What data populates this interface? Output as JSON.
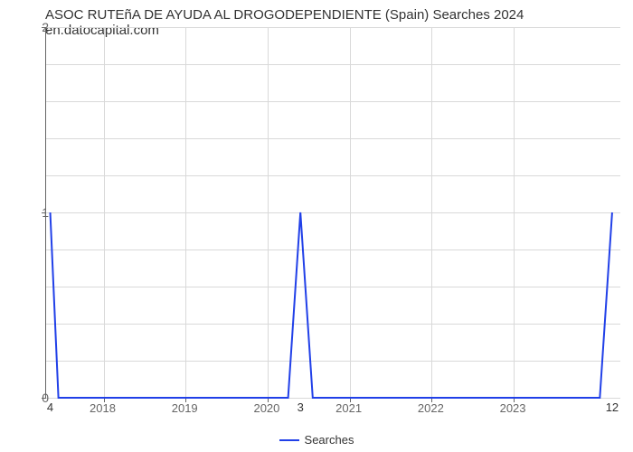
{
  "chart": {
    "type": "line",
    "title": "ASOC RUTEñA DE AYUDA AL DROGODEPENDIENTE (Spain) Searches 2024 en.datocapital.com",
    "title_fontsize": 15,
    "title_color": "#333333",
    "background_color": "#ffffff",
    "grid_color": "#d9d9d9",
    "axis_color": "#666666",
    "xlim": [
      2017.3,
      2024.3
    ],
    "ylim": [
      0,
      2
    ],
    "xticks": [
      2018,
      2019,
      2020,
      2021,
      2022,
      2023
    ],
    "xtick_labels": [
      "2018",
      "2019",
      "2020",
      "2021",
      "2022",
      "2023"
    ],
    "yticks_major": [
      0,
      1,
      2
    ],
    "ytick_labels": [
      "0",
      "1",
      "2"
    ],
    "yticks_minor": [
      0.2,
      0.4,
      0.6,
      0.8,
      1.2,
      1.4,
      1.6,
      1.8
    ],
    "xtick_fontsize": 13,
    "ytick_fontsize": 14,
    "series": {
      "name": "Searches",
      "color": "#2140e8",
      "line_width": 2,
      "x": [
        2017.35,
        2017.45,
        2017.55,
        2020.25,
        2020.4,
        2020.55,
        2024.05,
        2024.2
      ],
      "y": [
        1.0,
        0.0,
        0.0,
        0.0,
        1.0,
        0.0,
        0.0,
        1.0
      ]
    },
    "data_labels": [
      {
        "x": 2017.35,
        "y": 0.0,
        "text": "4",
        "dy": 3
      },
      {
        "x": 2020.4,
        "y": 0.0,
        "text": "3",
        "dy": 3
      },
      {
        "x": 2024.2,
        "y": 0.0,
        "text": "12",
        "dy": 3
      }
    ],
    "legend": {
      "items": [
        {
          "label": "Searches",
          "color": "#2140e8"
        }
      ]
    }
  }
}
